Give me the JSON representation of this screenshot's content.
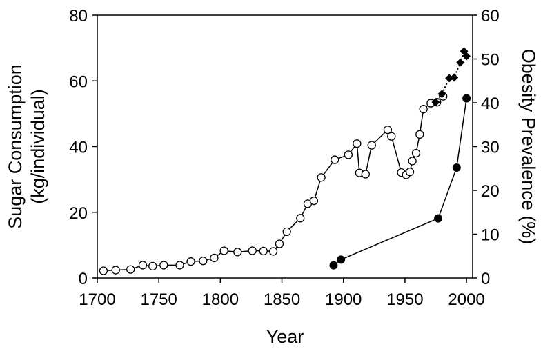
{
  "chart_data": {
    "type": "line",
    "xlabel": "Year",
    "ylabel_left": [
      "Sugar Consumption",
      "(kg/individual)"
    ],
    "ylabel_right": "Obesity Prevalence (%)",
    "xlim": [
      1700,
      2005
    ],
    "x_ticks": [
      "1700",
      "1750",
      "1800",
      "1850",
      "1900",
      "1950",
      "2000"
    ],
    "ylim_left": [
      0,
      80
    ],
    "y_ticks_left": [
      "0",
      "20",
      "40",
      "60",
      "80"
    ],
    "ylim_right": [
      0,
      60
    ],
    "y_ticks_right": [
      "0",
      "10",
      "20",
      "30",
      "40",
      "50",
      "60"
    ],
    "grid": false,
    "series": [
      {
        "axis": "left",
        "marker": "open-circle",
        "line": "solid",
        "x": [
          1705,
          1715,
          1727,
          1737,
          1745,
          1754,
          1767,
          1776,
          1786,
          1795,
          1803,
          1814,
          1826,
          1835,
          1843,
          1848,
          1854,
          1865,
          1871,
          1876,
          1882,
          1893,
          1904,
          1911,
          1913,
          1918,
          1923,
          1936,
          1939,
          1947,
          1951,
          1954,
          1956,
          1959,
          1962,
          1965,
          1971,
          1976,
          1981
        ],
        "y": [
          2.2,
          2.4,
          2.6,
          3.9,
          3.6,
          3.9,
          3.9,
          5.0,
          5.2,
          6.1,
          8.3,
          7.9,
          8.3,
          8.2,
          8.1,
          10.4,
          14.1,
          18.2,
          22.6,
          23.5,
          30.6,
          36.0,
          37.5,
          40.9,
          32.0,
          31.6,
          40.4,
          45.1,
          43.1,
          32.1,
          31.4,
          32.3,
          35.6,
          38.0,
          43.7,
          51.4,
          53.2,
          53.5,
          55.3
        ]
      },
      {
        "axis": "left",
        "marker": "filled-diamond",
        "line": "dotted",
        "x": [
          1975,
          1980,
          1986,
          1990,
          1995,
          1998,
          2000
        ],
        "y": [
          53.5,
          56.0,
          60.8,
          61.0,
          65.6,
          69.0,
          67.5
        ]
      },
      {
        "axis": "right",
        "marker": "filled-circle",
        "line": "solid",
        "x": [
          1892,
          1898,
          1977,
          1992,
          2000
        ],
        "y": [
          2.9,
          4.2,
          13.6,
          25.2,
          41.0
        ]
      }
    ]
  }
}
